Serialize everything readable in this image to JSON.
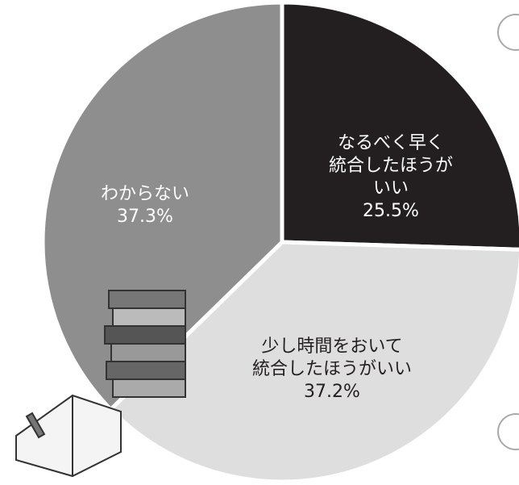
{
  "chart_data": {
    "type": "pie",
    "categories": [
      "なるべく早く\n統合したほうがいい",
      "少し時間をおいて\n統合したほうがいい",
      "わからない"
    ],
    "values": [
      25.5,
      37.2,
      37.3
    ],
    "value_labels": [
      "25.5%",
      "37.2%",
      "37.3%"
    ],
    "colors": [
      "#231f20",
      "#dedede",
      "#8e8e8e"
    ],
    "label_colors": [
      "#ffffff",
      "#231f20",
      "#ffffff"
    ]
  }
}
